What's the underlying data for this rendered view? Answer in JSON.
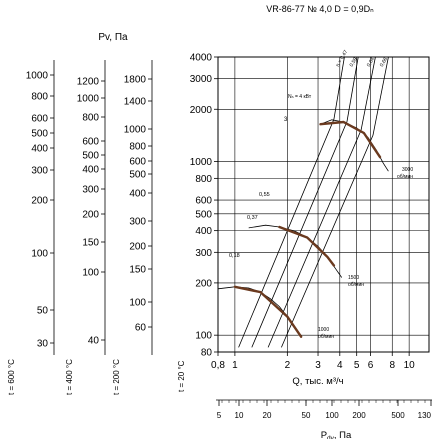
{
  "chart_data": {
    "type": "line",
    "title": "VR-86-77 № 4,0 D = 0,9Dₙ",
    "x_axis": {
      "label": "Q, тыс. м³/ч",
      "scale": "log",
      "range": [
        0.8,
        13
      ],
      "ticks": [
        {
          "value": 0.8,
          "label": "0,8"
        },
        {
          "value": 1,
          "label": "1"
        },
        {
          "value": 2,
          "label": "2"
        },
        {
          "value": 3,
          "label": "3"
        },
        {
          "value": 4,
          "label": "4"
        },
        {
          "value": 5,
          "label": "5"
        },
        {
          "value": 6,
          "label": "6"
        },
        {
          "value": 8,
          "label": "8"
        },
        {
          "value": 10,
          "label": "10"
        }
      ]
    },
    "y_axis": {
      "label": "t = 20 °C",
      "scale": "log",
      "range": [
        80,
        4000
      ],
      "ticks": [
        80,
        100,
        200,
        300,
        400,
        500,
        600,
        800,
        1000,
        2000,
        3000,
        4000
      ]
    },
    "bottom_scale": {
      "label": "Pₙₑ, Па",
      "label_main": "P",
      "label_sub": "dv",
      "label_tail": ", Па",
      "ticks": [
        "5",
        "10",
        "20",
        "50",
        "100",
        "200",
        "500",
        "130"
      ]
    },
    "side_scales": {
      "header": "Pv, Па",
      "columns": [
        {
          "label": "t = 600 °C",
          "ticks": [
            "1000",
            "800",
            "600",
            "500",
            "400",
            "300",
            "200",
            "100",
            "50",
            "30"
          ]
        },
        {
          "label": "t = 400 °C",
          "ticks": [
            "1200",
            "1000",
            "800",
            "600",
            "500",
            "400",
            "300",
            "200",
            "150",
            "100",
            "40"
          ]
        },
        {
          "label": "t = 200 °C",
          "ticks": [
            "1800",
            "1400",
            "1000",
            "800",
            "600",
            "500",
            "400",
            "300",
            "200",
            "150",
            "100",
            "60"
          ]
        }
      ]
    },
    "series": [
      {
        "name": "1000 об/мин",
        "points": [
          [
            0.8,
            185
          ],
          [
            1.0,
            190
          ],
          [
            1.2,
            187
          ],
          [
            1.4,
            177
          ],
          [
            1.6,
            162
          ],
          [
            1.8,
            146
          ],
          [
            2.0,
            128
          ],
          [
            2.2,
            112
          ],
          [
            2.4,
            98
          ]
        ],
        "optimum": [
          [
            1.0,
            190
          ],
          [
            1.4,
            177
          ],
          [
            2.0,
            128
          ],
          [
            2.4,
            98
          ]
        ]
      },
      {
        "name": "1500 об/мин",
        "points": [
          [
            1.2,
            415
          ],
          [
            1.5,
            430
          ],
          [
            1.8,
            420
          ],
          [
            2.2,
            398
          ],
          [
            2.6,
            365
          ],
          [
            3.0,
            325
          ],
          [
            3.4,
            282
          ],
          [
            3.8,
            240
          ],
          [
            4.1,
            215
          ]
        ],
        "optimum": [
          [
            1.8,
            420
          ],
          [
            2.6,
            365
          ],
          [
            3.4,
            282
          ],
          [
            3.7,
            252
          ]
        ]
      },
      {
        "name": "3000 об/мин",
        "points": [
          [
            3.1,
            1640
          ],
          [
            3.6,
            1740
          ],
          [
            4.2,
            1690
          ],
          [
            5.0,
            1560
          ],
          [
            5.8,
            1380
          ],
          [
            6.5,
            1160
          ],
          [
            7.1,
            980
          ],
          [
            7.6,
            880
          ]
        ],
        "optimum": [
          [
            3.1,
            1640
          ],
          [
            4.2,
            1690
          ],
          [
            5.5,
            1460
          ],
          [
            6.8,
            1060
          ]
        ]
      }
    ],
    "efficiency_lines": [
      {
        "label": "n = 0,47",
        "points": [
          [
            1.05,
            85
          ],
          [
            3.7,
            1750
          ],
          [
            4.25,
            4000
          ]
        ]
      },
      {
        "label": "0,59",
        "points": [
          [
            1.25,
            85
          ],
          [
            4.4,
            1700
          ],
          [
            5.1,
            4000
          ]
        ]
      },
      {
        "label": "0,64",
        "points": [
          [
            1.55,
            85
          ],
          [
            5.3,
            1520
          ],
          [
            6.4,
            4000
          ]
        ]
      },
      {
        "label": "0,66",
        "points": [
          [
            1.85,
            85
          ],
          [
            6.2,
            1420
          ],
          [
            7.6,
            4000
          ]
        ]
      }
    ],
    "efficiency_labels": [
      "0,55",
      "0,37",
      "0,18"
    ],
    "power_label": "Nₙ = 4 кВт",
    "power_values": [
      "3"
    ],
    "speed_labels": [
      {
        "top": "3000",
        "bottom": "об/мин"
      },
      {
        "top": "1500",
        "bottom": "об/мин"
      },
      {
        "top": "1000",
        "bottom": "об/мин"
      }
    ],
    "grid": true
  }
}
